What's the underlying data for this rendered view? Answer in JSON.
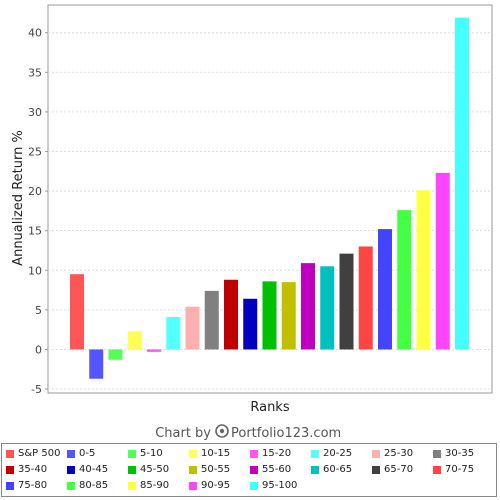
{
  "chart_data": {
    "type": "bar",
    "title": "",
    "xlabel": "Ranks",
    "ylabel": "Annualized Return %",
    "ylim": [
      -5.5,
      43.5
    ],
    "yticks": [
      -5,
      0,
      5,
      10,
      15,
      20,
      25,
      30,
      35,
      40
    ],
    "grid": true,
    "legend_position": "bottom",
    "categories": [
      "S&P 500",
      "0-5",
      "5-10",
      "10-15",
      "15-20",
      "20-25",
      "25-30",
      "30-35",
      "35-40",
      "40-45",
      "45-50",
      "50-55",
      "55-60",
      "60-65",
      "65-70",
      "70-75",
      "75-80",
      "80-85",
      "85-90",
      "90-95",
      "95-100"
    ],
    "values": [
      9.5,
      -3.7,
      -1.3,
      2.3,
      -0.3,
      4.1,
      5.4,
      7.4,
      8.8,
      6.4,
      8.6,
      8.5,
      10.9,
      10.5,
      12.1,
      13.0,
      15.2,
      17.6,
      20.1,
      22.3,
      41.9
    ],
    "colors": [
      "#ff5555",
      "#5555ff",
      "#55ff55",
      "#ffff55",
      "#ff55ff",
      "#55ffff",
      "#ffafaf",
      "#808080",
      "#c00000",
      "#0000c0",
      "#00c000",
      "#c0c000",
      "#c000c0",
      "#00c0c0",
      "#404040",
      "#ff4444",
      "#4444ff",
      "#44ff44",
      "#ffff44",
      "#ff44ff",
      "#44ffff"
    ]
  },
  "credit": {
    "prefix": "Chart by",
    "brand": "Portfolio123.com"
  }
}
